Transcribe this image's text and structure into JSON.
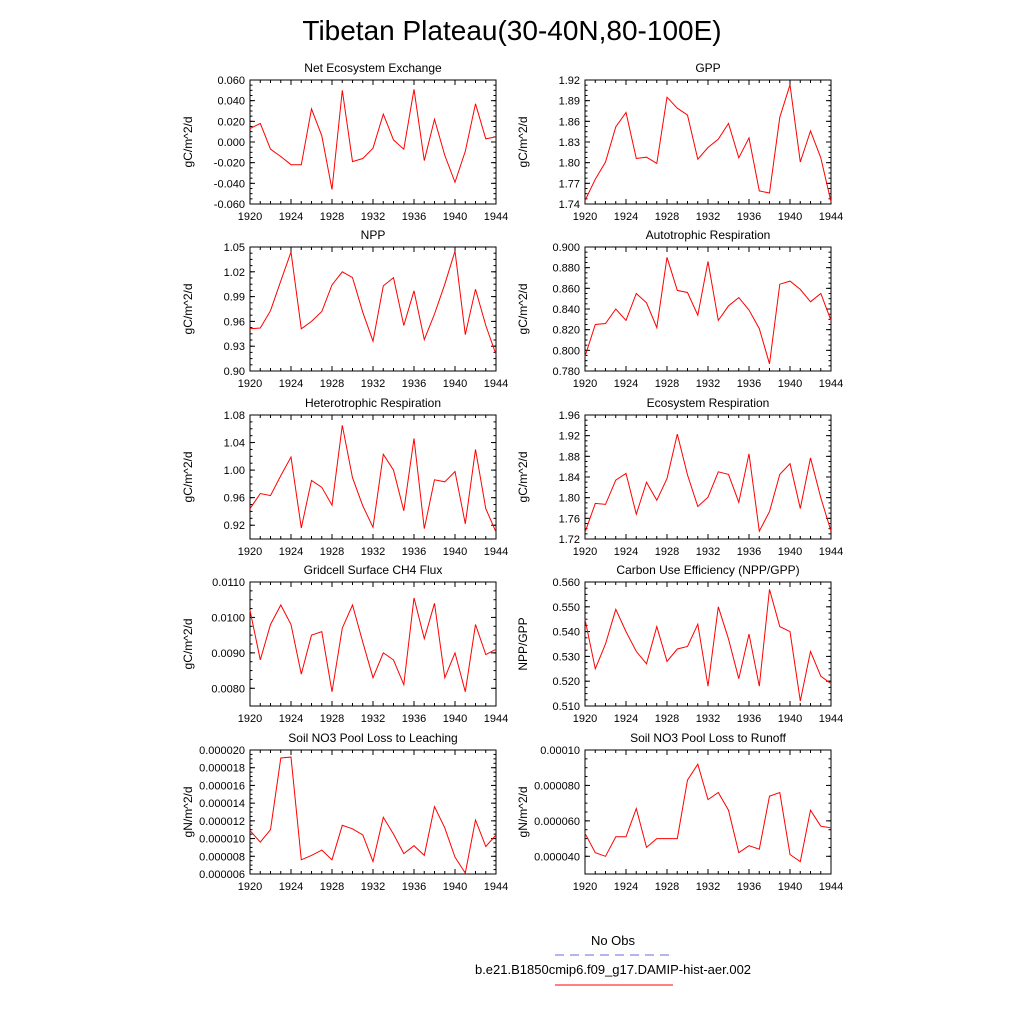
{
  "page": {
    "title": "Tibetan Plateau(30-40N,80-100E)"
  },
  "legend": {
    "obs_label": "No Obs",
    "obs_color": "#6a6ae0",
    "model_label": "b.e21.B1850cmip6.f09_g17.DAMIP-hist-aer.002",
    "model_color": "#ff0000"
  },
  "chart_data": [
    {
      "type": "line",
      "title": "Net Ecosystem Exchange",
      "ylabel": "gC/m^2/d",
      "xlim": [
        1920,
        1944
      ],
      "ylim": [
        -0.06,
        0.06
      ],
      "xticks": [
        1920,
        1924,
        1928,
        1932,
        1936,
        1940,
        1944
      ],
      "yticks": [
        -0.06,
        -0.04,
        -0.02,
        0.0,
        0.02,
        0.04,
        0.06
      ],
      "ytick_labels": [
        "-0.060",
        "-0.040",
        "-0.020",
        "0.000",
        "0.020",
        "0.040",
        "0.060"
      ],
      "x": [
        1920,
        1921,
        1922,
        1923,
        1924,
        1925,
        1926,
        1927,
        1928,
        1929,
        1930,
        1931,
        1932,
        1933,
        1934,
        1935,
        1936,
        1937,
        1938,
        1939,
        1940,
        1941,
        1942,
        1943,
        1944
      ],
      "series": [
        {
          "color": "#ff0000",
          "values": [
            0.013,
            0.018,
            -0.007,
            -0.014,
            -0.022,
            -0.022,
            0.032,
            0.006,
            -0.046,
            0.05,
            -0.019,
            -0.016,
            -0.006,
            0.027,
            0.002,
            -0.007,
            0.051,
            -0.018,
            0.022,
            -0.013,
            -0.039,
            -0.009,
            0.037,
            0.003,
            0.005
          ]
        }
      ]
    },
    {
      "type": "line",
      "title": "GPP",
      "ylabel": "gC/m^2/d",
      "xlim": [
        1920,
        1944
      ],
      "ylim": [
        1.74,
        1.92
      ],
      "xticks": [
        1920,
        1924,
        1928,
        1932,
        1936,
        1940,
        1944
      ],
      "yticks": [
        1.74,
        1.77,
        1.8,
        1.83,
        1.86,
        1.89,
        1.92
      ],
      "ytick_labels": [
        "1.74",
        "1.77",
        "1.80",
        "1.83",
        "1.86",
        "1.89",
        "1.92"
      ],
      "x": [
        1920,
        1921,
        1922,
        1923,
        1924,
        1925,
        1926,
        1927,
        1928,
        1929,
        1930,
        1931,
        1932,
        1933,
        1934,
        1935,
        1936,
        1937,
        1938,
        1939,
        1940,
        1941,
        1942,
        1943,
        1944
      ],
      "series": [
        {
          "color": "#ff0000",
          "values": [
            1.745,
            1.776,
            1.801,
            1.852,
            1.873,
            1.806,
            1.808,
            1.799,
            1.895,
            1.879,
            1.869,
            1.805,
            1.822,
            1.834,
            1.857,
            1.807,
            1.836,
            1.759,
            1.756,
            1.866,
            1.913,
            1.801,
            1.846,
            1.807,
            1.743
          ]
        }
      ]
    },
    {
      "type": "line",
      "title": "NPP",
      "ylabel": "gC/m^2/d",
      "xlim": [
        1920,
        1944
      ],
      "ylim": [
        0.9,
        1.05
      ],
      "xticks": [
        1920,
        1924,
        1928,
        1932,
        1936,
        1940,
        1944
      ],
      "yticks": [
        0.9,
        0.93,
        0.96,
        0.99,
        1.02,
        1.05
      ],
      "ytick_labels": [
        "0.90",
        "0.93",
        "0.96",
        "0.99",
        "1.02",
        "1.05"
      ],
      "x": [
        1920,
        1921,
        1922,
        1923,
        1924,
        1925,
        1926,
        1927,
        1928,
        1929,
        1930,
        1931,
        1932,
        1933,
        1934,
        1935,
        1936,
        1937,
        1938,
        1939,
        1940,
        1941,
        1942,
        1943,
        1944
      ],
      "series": [
        {
          "color": "#ff0000",
          "values": [
            0.951,
            0.952,
            0.973,
            1.009,
            1.044,
            0.951,
            0.96,
            0.972,
            1.004,
            1.02,
            1.013,
            0.971,
            0.936,
            1.003,
            1.013,
            0.955,
            0.997,
            0.938,
            0.969,
            1.005,
            1.045,
            0.944,
            0.999,
            0.955,
            0.92
          ]
        }
      ]
    },
    {
      "type": "line",
      "title": "Autotrophic Respiration",
      "ylabel": "gC/m^2/d",
      "xlim": [
        1920,
        1944
      ],
      "ylim": [
        0.78,
        0.9
      ],
      "xticks": [
        1920,
        1924,
        1928,
        1932,
        1936,
        1940,
        1944
      ],
      "yticks": [
        0.78,
        0.8,
        0.82,
        0.84,
        0.86,
        0.88,
        0.9
      ],
      "ytick_labels": [
        "0.780",
        "0.800",
        "0.820",
        "0.840",
        "0.860",
        "0.880",
        "0.900"
      ],
      "x": [
        1920,
        1921,
        1922,
        1923,
        1924,
        1925,
        1926,
        1927,
        1928,
        1929,
        1930,
        1931,
        1932,
        1933,
        1934,
        1935,
        1936,
        1937,
        1938,
        1939,
        1940,
        1941,
        1942,
        1943,
        1944
      ],
      "series": [
        {
          "color": "#ff0000",
          "values": [
            0.794,
            0.825,
            0.826,
            0.84,
            0.829,
            0.855,
            0.846,
            0.822,
            0.89,
            0.858,
            0.856,
            0.834,
            0.886,
            0.829,
            0.843,
            0.851,
            0.839,
            0.821,
            0.787,
            0.864,
            0.867,
            0.859,
            0.847,
            0.855,
            0.829
          ]
        }
      ]
    },
    {
      "type": "line",
      "title": "Heterotrophic Respiration",
      "ylabel": "gC/m^2/d",
      "xlim": [
        1920,
        1944
      ],
      "ylim": [
        0.9,
        1.08
      ],
      "xticks": [
        1920,
        1924,
        1928,
        1932,
        1936,
        1940,
        1944
      ],
      "yticks": [
        0.92,
        0.96,
        1.0,
        1.04,
        1.08
      ],
      "ytick_labels": [
        "0.92",
        "0.96",
        "1.00",
        "1.04",
        "1.08"
      ],
      "x": [
        1920,
        1921,
        1922,
        1923,
        1924,
        1925,
        1926,
        1927,
        1928,
        1929,
        1930,
        1931,
        1932,
        1933,
        1934,
        1935,
        1936,
        1937,
        1938,
        1939,
        1940,
        1941,
        1942,
        1943,
        1944
      ],
      "series": [
        {
          "color": "#ff0000",
          "values": [
            0.944,
            0.966,
            0.963,
            0.992,
            1.019,
            0.916,
            0.985,
            0.975,
            0.949,
            1.065,
            0.989,
            0.948,
            0.917,
            1.023,
            1.0,
            0.941,
            1.046,
            0.915,
            0.986,
            0.983,
            0.998,
            0.922,
            1.03,
            0.944,
            0.91
          ]
        }
      ]
    },
    {
      "type": "line",
      "title": "Ecosystem Respiration",
      "ylabel": "gC/m^2/d",
      "xlim": [
        1920,
        1944
      ],
      "ylim": [
        1.72,
        1.96
      ],
      "xticks": [
        1920,
        1924,
        1928,
        1932,
        1936,
        1940,
        1944
      ],
      "yticks": [
        1.72,
        1.76,
        1.8,
        1.84,
        1.88,
        1.92,
        1.96
      ],
      "ytick_labels": [
        "1.72",
        "1.76",
        "1.80",
        "1.84",
        "1.88",
        "1.92",
        "1.96"
      ],
      "x": [
        1920,
        1921,
        1922,
        1923,
        1924,
        1925,
        1926,
        1927,
        1928,
        1929,
        1930,
        1931,
        1932,
        1933,
        1934,
        1935,
        1936,
        1937,
        1938,
        1939,
        1940,
        1941,
        1942,
        1943,
        1944
      ],
      "series": [
        {
          "color": "#ff0000",
          "values": [
            1.733,
            1.789,
            1.787,
            1.834,
            1.847,
            1.768,
            1.83,
            1.795,
            1.837,
            1.923,
            1.844,
            1.783,
            1.801,
            1.85,
            1.845,
            1.791,
            1.885,
            1.735,
            1.773,
            1.845,
            1.866,
            1.779,
            1.877,
            1.8,
            1.735
          ]
        }
      ]
    },
    {
      "type": "line",
      "title": "Gridcell Surface CH4 Flux",
      "ylabel": "gC/m^2/d",
      "xlim": [
        1920,
        1944
      ],
      "ylim": [
        0.0075,
        0.011
      ],
      "xticks": [
        1920,
        1924,
        1928,
        1932,
        1936,
        1940,
        1944
      ],
      "yticks": [
        0.008,
        0.009,
        0.01,
        0.011
      ],
      "ytick_labels": [
        "0.0080",
        "0.0090",
        "0.0100",
        "0.0110"
      ],
      "x": [
        1920,
        1921,
        1922,
        1923,
        1924,
        1925,
        1926,
        1927,
        1928,
        1929,
        1930,
        1931,
        1932,
        1933,
        1934,
        1935,
        1936,
        1937,
        1938,
        1939,
        1940,
        1941,
        1942,
        1943,
        1944
      ],
      "series": [
        {
          "color": "#ff0000",
          "values": [
            0.0102,
            0.0088,
            0.0098,
            0.01035,
            0.0098,
            0.0084,
            0.0095,
            0.0096,
            0.0079,
            0.0097,
            0.01035,
            0.0093,
            0.0083,
            0.009,
            0.0088,
            0.0081,
            0.01055,
            0.0094,
            0.0104,
            0.0083,
            0.009,
            0.0079,
            0.0098,
            0.00895,
            0.0091
          ]
        }
      ]
    },
    {
      "type": "line",
      "title": "Carbon Use Efficiency (NPP/GPP)",
      "ylabel": "NPP/GPP",
      "xlim": [
        1920,
        1944
      ],
      "ylim": [
        0.51,
        0.56
      ],
      "xticks": [
        1920,
        1924,
        1928,
        1932,
        1936,
        1940,
        1944
      ],
      "yticks": [
        0.51,
        0.52,
        0.53,
        0.54,
        0.55,
        0.56
      ],
      "ytick_labels": [
        "0.510",
        "0.520",
        "0.530",
        "0.540",
        "0.550",
        "0.560"
      ],
      "x": [
        1920,
        1921,
        1922,
        1923,
        1924,
        1925,
        1926,
        1927,
        1928,
        1929,
        1930,
        1931,
        1932,
        1933,
        1934,
        1935,
        1936,
        1937,
        1938,
        1939,
        1940,
        1941,
        1942,
        1943,
        1944
      ],
      "series": [
        {
          "color": "#ff0000",
          "values": [
            0.545,
            0.525,
            0.535,
            0.549,
            0.54,
            0.532,
            0.527,
            0.542,
            0.528,
            0.533,
            0.534,
            0.543,
            0.518,
            0.55,
            0.537,
            0.521,
            0.539,
            0.518,
            0.557,
            0.542,
            0.54,
            0.512,
            0.532,
            0.522,
            0.519
          ]
        }
      ]
    },
    {
      "type": "line",
      "title": "Soil NO3 Pool Loss to Leaching",
      "ylabel": "gN/m^2/d",
      "xlim": [
        1920,
        1944
      ],
      "ylim": [
        6e-06,
        2e-05
      ],
      "xticks": [
        1920,
        1924,
        1928,
        1932,
        1936,
        1940,
        1944
      ],
      "yticks": [
        6e-06,
        8e-06,
        1e-05,
        1.2e-05,
        1.4e-05,
        1.6e-05,
        1.8e-05,
        2e-05
      ],
      "ytick_labels": [
        "0.000006",
        "0.000008",
        "0.000010",
        "0.000012",
        "0.000014",
        "0.000016",
        "0.000018",
        "0.000020"
      ],
      "x": [
        1920,
        1921,
        1922,
        1923,
        1924,
        1925,
        1926,
        1927,
        1928,
        1929,
        1930,
        1931,
        1932,
        1933,
        1934,
        1935,
        1936,
        1937,
        1938,
        1939,
        1940,
        1941,
        1942,
        1943,
        1944
      ],
      "series": [
        {
          "color": "#ff0000",
          "values": [
            1.09e-05,
            9.6e-06,
            1.1e-05,
            1.91e-05,
            1.92e-05,
            7.6e-06,
            8.1e-06,
            8.7e-06,
            7.6e-06,
            1.15e-05,
            1.11e-05,
            1.04e-05,
            7.4e-06,
            1.24e-05,
            1.05e-05,
            8.3e-06,
            9.2e-06,
            8.1e-06,
            1.36e-05,
            1.12e-05,
            7.9e-06,
            6.1e-06,
            1.21e-05,
            9.1e-06,
            1.04e-05
          ]
        }
      ]
    },
    {
      "type": "line",
      "title": "Soil NO3 Pool Loss to Runoff",
      "ylabel": "gN/m^2/d",
      "xlim": [
        1920,
        1944
      ],
      "ylim": [
        3e-05,
        0.0001
      ],
      "xticks": [
        1920,
        1924,
        1928,
        1932,
        1936,
        1940,
        1944
      ],
      "yticks": [
        4e-05,
        6e-05,
        8e-05,
        0.0001
      ],
      "ytick_labels": [
        "0.000040",
        "0.000060",
        "0.000080",
        "0.00010"
      ],
      "x": [
        1920,
        1921,
        1922,
        1923,
        1924,
        1925,
        1926,
        1927,
        1928,
        1929,
        1930,
        1931,
        1932,
        1933,
        1934,
        1935,
        1936,
        1937,
        1938,
        1939,
        1940,
        1941,
        1942,
        1943,
        1944
      ],
      "series": [
        {
          "color": "#ff0000",
          "values": [
            5.3e-05,
            4.2e-05,
            4e-05,
            5.1e-05,
            5.1e-05,
            6.7e-05,
            4.5e-05,
            5e-05,
            5e-05,
            5e-05,
            8.3e-05,
            9.2e-05,
            7.2e-05,
            7.6e-05,
            6.6e-05,
            4.2e-05,
            4.6e-05,
            4.4e-05,
            7.4e-05,
            7.6e-05,
            4.1e-05,
            3.7e-05,
            6.6e-05,
            5.7e-05,
            5.6e-05
          ]
        }
      ]
    }
  ]
}
